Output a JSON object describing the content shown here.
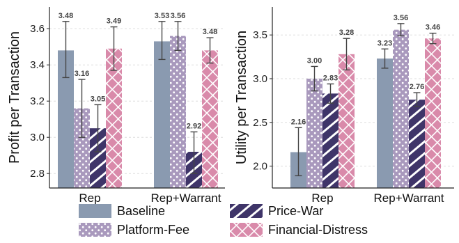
{
  "colors": {
    "Baseline": "#8a9ab0",
    "Platform-Fee": "#a999bd",
    "Price-War": "#3f3569",
    "Financial-Distress": "#d98aaa",
    "error": "#444444",
    "grid": "#dddddd"
  },
  "legend": {
    "labels": [
      "Baseline",
      "Price-War",
      "Platform-Fee",
      "Financial-Distress"
    ],
    "placement": "bottom"
  },
  "chart_data": [
    {
      "type": "bar",
      "ylabel": "Profit per Transaction",
      "categories": [
        "Rep",
        "Rep+Warrant"
      ],
      "ylim": [
        2.72,
        3.72
      ],
      "yticks": [
        2.8,
        3.0,
        3.2,
        3.4,
        3.6
      ],
      "ytick_labels": [
        "2.8",
        "3.0",
        "3.2",
        "3.4",
        "3.6"
      ],
      "grid": true,
      "series": [
        {
          "name": "Baseline",
          "values": [
            3.48,
            3.53
          ],
          "labels": [
            "3.48",
            "3.53"
          ],
          "err_low": [
            3.33,
            3.43
          ],
          "err_high": [
            3.64,
            3.64
          ],
          "pattern": "solid"
        },
        {
          "name": "Platform-Fee",
          "values": [
            3.16,
            3.56
          ],
          "labels": [
            "3.16",
            "3.56"
          ],
          "err_low": [
            3.0,
            3.48
          ],
          "err_high": [
            3.32,
            3.64
          ],
          "pattern": "dots"
        },
        {
          "name": "Price-War",
          "values": [
            3.05,
            2.92
          ],
          "labels": [
            "3.05",
            "2.92"
          ],
          "err_low": [
            2.92,
            2.8
          ],
          "err_high": [
            3.18,
            3.03
          ],
          "pattern": "hatch"
        },
        {
          "name": "Financial-Distress",
          "values": [
            3.49,
            3.48
          ],
          "labels": [
            "3.49",
            "3.48"
          ],
          "err_low": [
            3.37,
            3.41
          ],
          "err_high": [
            3.61,
            3.55
          ],
          "pattern": "cross"
        }
      ]
    },
    {
      "type": "bar",
      "ylabel": "Utility per Transaction",
      "categories": [
        "Rep",
        "Rep+Warrant"
      ],
      "ylim": [
        1.75,
        3.82
      ],
      "yticks": [
        2.0,
        2.5,
        3.0,
        3.5
      ],
      "ytick_labels": [
        "2.0",
        "2.5",
        "3.0",
        "3.5"
      ],
      "grid": true,
      "series": [
        {
          "name": "Baseline",
          "values": [
            2.16,
            3.23
          ],
          "labels": [
            "2.16",
            "3.23"
          ],
          "err_low": [
            1.89,
            3.12
          ],
          "err_high": [
            2.44,
            3.34
          ],
          "pattern": "solid"
        },
        {
          "name": "Platform-Fee",
          "values": [
            3.0,
            3.56
          ],
          "labels": [
            "3.00",
            "3.56"
          ],
          "err_low": [
            2.86,
            3.49
          ],
          "err_high": [
            3.14,
            3.63
          ],
          "pattern": "dots"
        },
        {
          "name": "Price-War",
          "values": [
            2.83,
            2.76
          ],
          "labels": [
            "2.83",
            "2.76"
          ],
          "err_low": [
            2.72,
            2.68
          ],
          "err_high": [
            2.94,
            2.84
          ],
          "pattern": "hatch"
        },
        {
          "name": "Financial-Distress",
          "values": [
            3.28,
            3.46
          ],
          "labels": [
            "3.28",
            "3.46"
          ],
          "err_low": [
            3.1,
            3.4
          ],
          "err_high": [
            3.46,
            3.52
          ],
          "pattern": "cross"
        }
      ]
    }
  ]
}
